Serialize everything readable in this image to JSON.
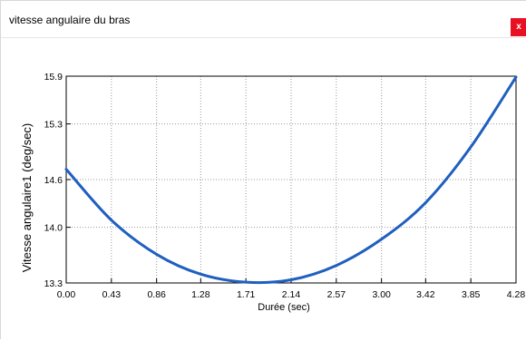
{
  "window": {
    "title": "vitesse angulaire du bras",
    "close_label": "x"
  },
  "colors": {
    "curve": "#1f5fbf",
    "grid": "#9a9a9a",
    "axis": "#000000",
    "close": "#e81123"
  },
  "chart_data": {
    "type": "line",
    "title": "",
    "xlabel": "Durée (sec)",
    "ylabel": "Vitesse angulaire1 (deg/sec)",
    "xlim": [
      0,
      4.28
    ],
    "ylim": [
      13.3,
      15.9
    ],
    "x_ticks": [
      "0.00",
      "0.43",
      "0.86",
      "1.28",
      "1.71",
      "2.14",
      "2.57",
      "3.00",
      "3.42",
      "3.85",
      "4.28"
    ],
    "y_ticks": [
      "13.3",
      "14.0",
      "14.6",
      "15.3",
      "15.9"
    ],
    "grid": true,
    "series": [
      {
        "x": [
          0,
          0.43,
          0.86,
          1.28,
          1.71,
          2.14,
          2.57,
          3.0,
          3.42,
          3.85,
          4.28
        ],
        "y": [
          14.73,
          14.09,
          13.66,
          13.41,
          13.31,
          13.34,
          13.52,
          13.85,
          14.31,
          15.01,
          15.89
        ]
      }
    ]
  }
}
